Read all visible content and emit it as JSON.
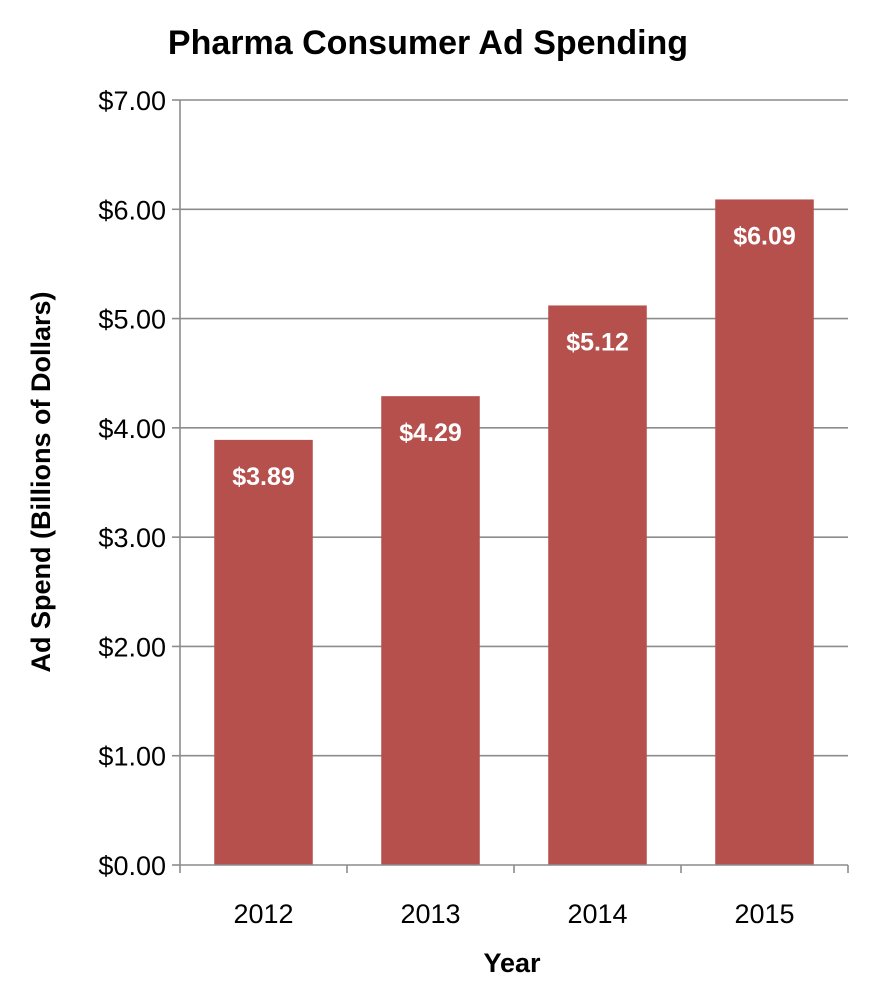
{
  "chart_data": {
    "type": "bar",
    "title": "Pharma Consumer Ad Spending",
    "xlabel": "Year",
    "ylabel": "Ad Spend (Billions of Dollars)",
    "categories": [
      "2012",
      "2013",
      "2014",
      "2015"
    ],
    "values": [
      3.89,
      4.29,
      5.12,
      6.09
    ],
    "data_labels": [
      "$3.89",
      "$4.29",
      "$5.12",
      "$6.09"
    ],
    "ylim": [
      0,
      7
    ],
    "y_ticks": [
      0,
      1,
      2,
      3,
      4,
      5,
      6,
      7
    ],
    "y_tick_labels": [
      "$0.00",
      "$1.00",
      "$2.00",
      "$3.00",
      "$4.00",
      "$5.00",
      "$6.00",
      "$7.00"
    ],
    "grid": true,
    "legend": "none",
    "bar_color": "#b5504d",
    "grid_color": "#8c8c8c"
  }
}
